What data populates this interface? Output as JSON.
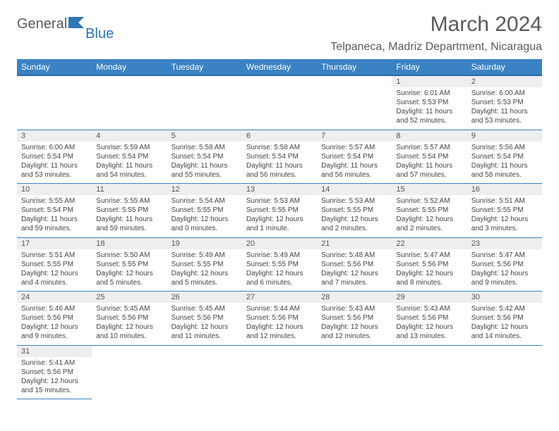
{
  "logo": {
    "general": "General",
    "blue": "Blue"
  },
  "title": "March 2024",
  "location": "Telpaneca, Madriz Department, Nicaragua",
  "colors": {
    "header_bg": "#3a82c4",
    "header_text": "#ffffff",
    "daynum_bg": "#eeeeee",
    "border": "#3a82c4",
    "title_color": "#5a5a5a"
  },
  "weekdays": [
    "Sunday",
    "Monday",
    "Tuesday",
    "Wednesday",
    "Thursday",
    "Friday",
    "Saturday"
  ],
  "weeks": [
    [
      null,
      null,
      null,
      null,
      null,
      {
        "n": "1",
        "sr": "Sunrise: 6:01 AM",
        "ss": "Sunset: 5:53 PM",
        "dl": "Daylight: 11 hours and 52 minutes."
      },
      {
        "n": "2",
        "sr": "Sunrise: 6:00 AM",
        "ss": "Sunset: 5:53 PM",
        "dl": "Daylight: 11 hours and 53 minutes."
      }
    ],
    [
      {
        "n": "3",
        "sr": "Sunrise: 6:00 AM",
        "ss": "Sunset: 5:54 PM",
        "dl": "Daylight: 11 hours and 53 minutes."
      },
      {
        "n": "4",
        "sr": "Sunrise: 5:59 AM",
        "ss": "Sunset: 5:54 PM",
        "dl": "Daylight: 11 hours and 54 minutes."
      },
      {
        "n": "5",
        "sr": "Sunrise: 5:58 AM",
        "ss": "Sunset: 5:54 PM",
        "dl": "Daylight: 11 hours and 55 minutes."
      },
      {
        "n": "6",
        "sr": "Sunrise: 5:58 AM",
        "ss": "Sunset: 5:54 PM",
        "dl": "Daylight: 11 hours and 56 minutes."
      },
      {
        "n": "7",
        "sr": "Sunrise: 5:57 AM",
        "ss": "Sunset: 5:54 PM",
        "dl": "Daylight: 11 hours and 56 minutes."
      },
      {
        "n": "8",
        "sr": "Sunrise: 5:57 AM",
        "ss": "Sunset: 5:54 PM",
        "dl": "Daylight: 11 hours and 57 minutes."
      },
      {
        "n": "9",
        "sr": "Sunrise: 5:56 AM",
        "ss": "Sunset: 5:54 PM",
        "dl": "Daylight: 11 hours and 58 minutes."
      }
    ],
    [
      {
        "n": "10",
        "sr": "Sunrise: 5:55 AM",
        "ss": "Sunset: 5:54 PM",
        "dl": "Daylight: 11 hours and 59 minutes."
      },
      {
        "n": "11",
        "sr": "Sunrise: 5:55 AM",
        "ss": "Sunset: 5:55 PM",
        "dl": "Daylight: 11 hours and 59 minutes."
      },
      {
        "n": "12",
        "sr": "Sunrise: 5:54 AM",
        "ss": "Sunset: 5:55 PM",
        "dl": "Daylight: 12 hours and 0 minutes."
      },
      {
        "n": "13",
        "sr": "Sunrise: 5:53 AM",
        "ss": "Sunset: 5:55 PM",
        "dl": "Daylight: 12 hours and 1 minute."
      },
      {
        "n": "14",
        "sr": "Sunrise: 5:53 AM",
        "ss": "Sunset: 5:55 PM",
        "dl": "Daylight: 12 hours and 2 minutes."
      },
      {
        "n": "15",
        "sr": "Sunrise: 5:52 AM",
        "ss": "Sunset: 5:55 PM",
        "dl": "Daylight: 12 hours and 2 minutes."
      },
      {
        "n": "16",
        "sr": "Sunrise: 5:51 AM",
        "ss": "Sunset: 5:55 PM",
        "dl": "Daylight: 12 hours and 3 minutes."
      }
    ],
    [
      {
        "n": "17",
        "sr": "Sunrise: 5:51 AM",
        "ss": "Sunset: 5:55 PM",
        "dl": "Daylight: 12 hours and 4 minutes."
      },
      {
        "n": "18",
        "sr": "Sunrise: 5:50 AM",
        "ss": "Sunset: 5:55 PM",
        "dl": "Daylight: 12 hours and 5 minutes."
      },
      {
        "n": "19",
        "sr": "Sunrise: 5:49 AM",
        "ss": "Sunset: 5:55 PM",
        "dl": "Daylight: 12 hours and 5 minutes."
      },
      {
        "n": "20",
        "sr": "Sunrise: 5:49 AM",
        "ss": "Sunset: 5:55 PM",
        "dl": "Daylight: 12 hours and 6 minutes."
      },
      {
        "n": "21",
        "sr": "Sunrise: 5:48 AM",
        "ss": "Sunset: 5:56 PM",
        "dl": "Daylight: 12 hours and 7 minutes."
      },
      {
        "n": "22",
        "sr": "Sunrise: 5:47 AM",
        "ss": "Sunset: 5:56 PM",
        "dl": "Daylight: 12 hours and 8 minutes."
      },
      {
        "n": "23",
        "sr": "Sunrise: 5:47 AM",
        "ss": "Sunset: 5:56 PM",
        "dl": "Daylight: 12 hours and 9 minutes."
      }
    ],
    [
      {
        "n": "24",
        "sr": "Sunrise: 5:46 AM",
        "ss": "Sunset: 5:56 PM",
        "dl": "Daylight: 12 hours and 9 minutes."
      },
      {
        "n": "25",
        "sr": "Sunrise: 5:45 AM",
        "ss": "Sunset: 5:56 PM",
        "dl": "Daylight: 12 hours and 10 minutes."
      },
      {
        "n": "26",
        "sr": "Sunrise: 5:45 AM",
        "ss": "Sunset: 5:56 PM",
        "dl": "Daylight: 12 hours and 11 minutes."
      },
      {
        "n": "27",
        "sr": "Sunrise: 5:44 AM",
        "ss": "Sunset: 5:56 PM",
        "dl": "Daylight: 12 hours and 12 minutes."
      },
      {
        "n": "28",
        "sr": "Sunrise: 5:43 AM",
        "ss": "Sunset: 5:56 PM",
        "dl": "Daylight: 12 hours and 12 minutes."
      },
      {
        "n": "29",
        "sr": "Sunrise: 5:43 AM",
        "ss": "Sunset: 5:56 PM",
        "dl": "Daylight: 12 hours and 13 minutes."
      },
      {
        "n": "30",
        "sr": "Sunrise: 5:42 AM",
        "ss": "Sunset: 5:56 PM",
        "dl": "Daylight: 12 hours and 14 minutes."
      }
    ],
    [
      {
        "n": "31",
        "sr": "Sunrise: 5:41 AM",
        "ss": "Sunset: 5:56 PM",
        "dl": "Daylight: 12 hours and 15 minutes."
      },
      null,
      null,
      null,
      null,
      null,
      null
    ]
  ]
}
